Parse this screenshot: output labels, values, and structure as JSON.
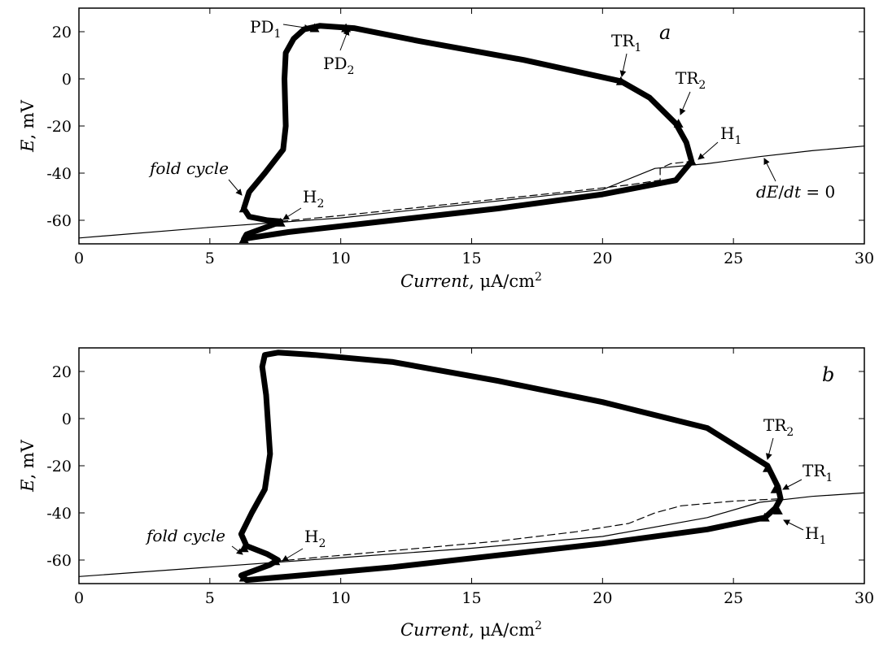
{
  "chart_data": [
    {
      "type": "line",
      "panel_label": "a",
      "xlabel_italic": "Current",
      "xlabel_unit": "μA/cm",
      "xlabel_sup": "2",
      "ylabel_italic": "E",
      "ylabel_unit": ", mV",
      "xlim": [
        0,
        30
      ],
      "ylim": [
        -70,
        30
      ],
      "xticks": [
        0,
        5,
        10,
        15,
        20,
        25,
        30
      ],
      "yticks": [
        20,
        0,
        -20,
        -40,
        -60
      ],
      "grid": false,
      "series": [
        {
          "name": "dE/dt = 0",
          "style": "solid",
          "x": [
            0,
            5,
            10,
            15,
            20,
            22,
            24,
            26,
            28,
            30
          ],
          "y": [
            -67.5,
            -63,
            -59,
            -53,
            -47,
            -38,
            -36,
            -33,
            -30.5,
            -28.5
          ]
        },
        {
          "style": "dashed",
          "x": [
            7.7,
            10,
            13,
            16,
            19,
            21,
            22.2,
            22.2,
            22.6,
            23.4
          ],
          "y": [
            -60.5,
            -58,
            -54.5,
            -51,
            -47.5,
            -45,
            -43,
            -38,
            -36,
            -35
          ]
        },
        {
          "style": "thick",
          "x": [
            23.4,
            23.2,
            22.8,
            21.8,
            20.7,
            17,
            13,
            10.5,
            9.2,
            8.6,
            8.2,
            7.9,
            7.85,
            7.9,
            7.8,
            7.1,
            6.5,
            6.3,
            6.5,
            7.2,
            7.7,
            7.5,
            6.4,
            6.3,
            6.5,
            8,
            12,
            16,
            20,
            22.8,
            23.4
          ],
          "y": [
            -35,
            -27,
            -19,
            -8,
            -1,
            8,
            16,
            21.5,
            22.5,
            21,
            17,
            11,
            0,
            -20,
            -30,
            -40,
            -48,
            -55,
            -58.5,
            -60,
            -60.5,
            -61.5,
            -66,
            -68,
            -67.5,
            -65,
            -60,
            -55,
            -49,
            -43,
            -35
          ]
        }
      ],
      "markers": [
        {
          "label": "PD",
          "sub": "1",
          "x": 9.0,
          "y": 21.5
        },
        {
          "label": "PD",
          "sub": "2",
          "x": 10.2,
          "y": 21.5
        },
        {
          "label": "TR",
          "sub": "1",
          "x": 20.7,
          "y": -1
        },
        {
          "label": "TR",
          "sub": "2",
          "x": 22.9,
          "y": -19
        },
        {
          "label": "H",
          "sub": "1",
          "x": 23.4,
          "y": -35
        },
        {
          "label": "H",
          "sub": "2",
          "x": 7.7,
          "y": -61
        },
        {
          "label": "",
          "sub": "",
          "x": 6.3,
          "y": -55
        },
        {
          "label": "",
          "sub": "",
          "x": 6.3,
          "y": -68
        }
      ],
      "annotations": {
        "fold_cycle": "fold cycle",
        "dEdt_prefix": "dE",
        "dEdt_slash": "/",
        "dEdt_dt": "dt",
        "dEdt_eq": " = 0"
      }
    },
    {
      "type": "line",
      "panel_label": "b",
      "xlabel_italic": "Current",
      "xlabel_unit": "μA/cm",
      "xlabel_sup": "2",
      "ylabel_italic": "E",
      "ylabel_unit": ", mV",
      "xlim": [
        0,
        30
      ],
      "ylim": [
        -70,
        30
      ],
      "xticks": [
        0,
        5,
        10,
        15,
        20,
        25,
        30
      ],
      "yticks": [
        20,
        0,
        -20,
        -40,
        -60
      ],
      "grid": false,
      "series": [
        {
          "style": "solid",
          "x": [
            0,
            5,
            10,
            15,
            20,
            24,
            26,
            28,
            30
          ],
          "y": [
            -67,
            -63,
            -59,
            -55,
            -50,
            -42,
            -35.5,
            -33,
            -31.5
          ]
        },
        {
          "style": "dashed",
          "x": [
            7.5,
            10,
            13,
            16,
            19,
            21,
            22,
            23,
            25,
            26.8
          ],
          "y": [
            -60.5,
            -58,
            -55,
            -52,
            -48,
            -44.5,
            -40,
            -37,
            -35,
            -34
          ]
        },
        {
          "style": "thick",
          "x": [
            26.8,
            26.7,
            26.3,
            24,
            20,
            16,
            12,
            9,
            7.6,
            7.1,
            7.0,
            7.15,
            7.3,
            7.1,
            6.6,
            6.2,
            6.4,
            7.2,
            7.6,
            7.3,
            6.2,
            6.4,
            8,
            12,
            16,
            20,
            24,
            26.2,
            26.6,
            26.8
          ],
          "y": [
            -34,
            -29,
            -20,
            -4,
            7,
            16,
            24,
            27,
            28,
            27,
            22,
            10,
            -15,
            -30,
            -40,
            -49,
            -54,
            -57.5,
            -60,
            -62,
            -66.5,
            -68.5,
            -67,
            -63,
            -58,
            -53,
            -47,
            -42,
            -38,
            -34
          ]
        }
      ],
      "markers": [
        {
          "label": "TR",
          "sub": "2",
          "x": 26.3,
          "y": -21
        },
        {
          "label": "TR",
          "sub": "1",
          "x": 26.6,
          "y": -30
        },
        {
          "label": "H",
          "sub": "1",
          "x": 26.7,
          "y": -39
        },
        {
          "label": "",
          "sub": "",
          "x": 26.2,
          "y": -42
        },
        {
          "label": "H",
          "sub": "2",
          "x": 7.5,
          "y": -60.5
        },
        {
          "label": "",
          "sub": "",
          "x": 6.3,
          "y": -55
        },
        {
          "label": "",
          "sub": "",
          "x": 6.3,
          "y": -67.5
        }
      ],
      "annotations": {
        "fold_cycle": "fold cycle"
      }
    }
  ]
}
